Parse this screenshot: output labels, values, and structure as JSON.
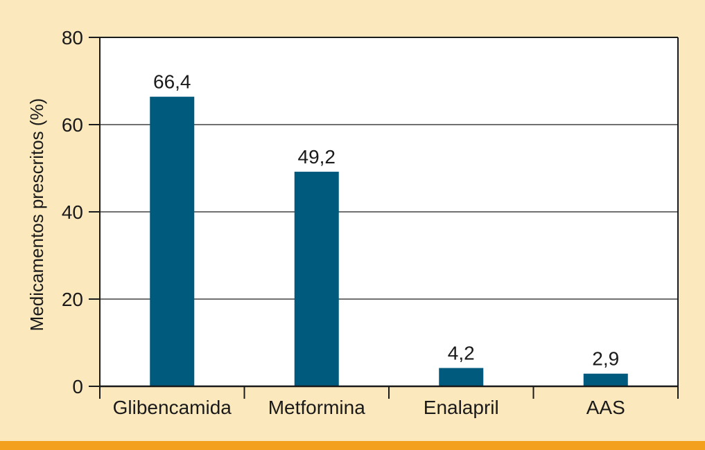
{
  "colors": {
    "background": "#fce8bd",
    "plot_background": "#ffffff",
    "bar": "#005a7e",
    "bottom_band": "#f3a01e",
    "axis": "#1a1a1a"
  },
  "chart_data": {
    "type": "bar",
    "categories": [
      "Glibencamida",
      "Metformina",
      "Enalapril",
      "AAS"
    ],
    "values": [
      66.4,
      49.2,
      4.2,
      2.9
    ],
    "value_labels": [
      "66,4",
      "49,2",
      "4,2",
      "2,9"
    ],
    "xlabel": "",
    "ylabel": "Medicamentos prescritos (%)",
    "ylim": [
      0,
      80
    ],
    "yticks": [
      0,
      20,
      40,
      60,
      80
    ],
    "ytick_labels": [
      "0",
      "20",
      "40",
      "60",
      "80"
    ],
    "grid": true,
    "legend": "none"
  }
}
